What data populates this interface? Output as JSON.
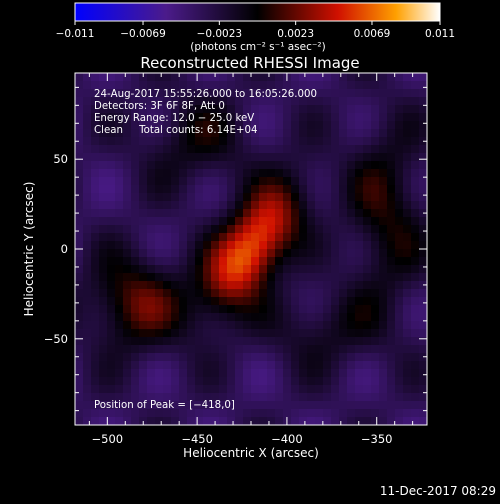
{
  "chart_data": {
    "type": "heatmap",
    "title": "Reconstructed RHESSI Image",
    "xlabel": "Heliocentric X (arcsec)",
    "ylabel": "Heliocentric Y (arcsec)",
    "xlim": [
      -518,
      -322
    ],
    "ylim": [
      -98,
      98
    ],
    "xticks": [
      -500,
      -450,
      -400,
      -350
    ],
    "xtick_labels": [
      "−500",
      "−450",
      "−400",
      "−350"
    ],
    "yticks": [
      50,
      0,
      -50
    ],
    "ytick_labels": [
      "50",
      "0",
      "−50"
    ],
    "colorbar": {
      "min": -0.011,
      "max": 0.011,
      "ticks": [
        -0.011,
        -0.0069,
        -0.0023,
        0.0023,
        0.0069,
        0.011
      ],
      "tick_labels": [
        "−0.011",
        "−0.0069",
        "−0.0023",
        "0.0023",
        "0.0069",
        "0.011"
      ],
      "unit_label": "(photons cm⁻² s⁻¹ asec⁻²)"
    },
    "annotations": [
      "24‑Aug‑2017 15:55:26.000 to 16:05:26.000",
      "Detectors: 3F 6F 8F, Att 0",
      "Energy Range: 12.0 − 25.0 keV",
      "Clean     Total counts: 6.14E+04"
    ],
    "peak_label": "Position of Peak = [−418,0]",
    "peak": {
      "x": -418,
      "y": 0
    },
    "sources": [
      {
        "x": -420,
        "y": 0,
        "sx": 12,
        "sy": 28,
        "angle": 35,
        "value": 0.011
      },
      {
        "x": -485,
        "y": -30,
        "sx": 18,
        "sy": 18,
        "angle": 0,
        "value": 0.0055
      },
      {
        "x": -345,
        "y": 20,
        "sx": 15,
        "sy": 35,
        "angle": 0,
        "value": 0.004
      },
      {
        "x": -450,
        "y": 60,
        "sx": 22,
        "sy": 18,
        "angle": 0,
        "value": 0.003
      },
      {
        "x": -380,
        "y": -45,
        "sx": 25,
        "sy": 15,
        "angle": 0,
        "value": 0.0025
      }
    ]
  },
  "footer": {
    "timestamp": "11‑Dec‑2017 08:29"
  }
}
